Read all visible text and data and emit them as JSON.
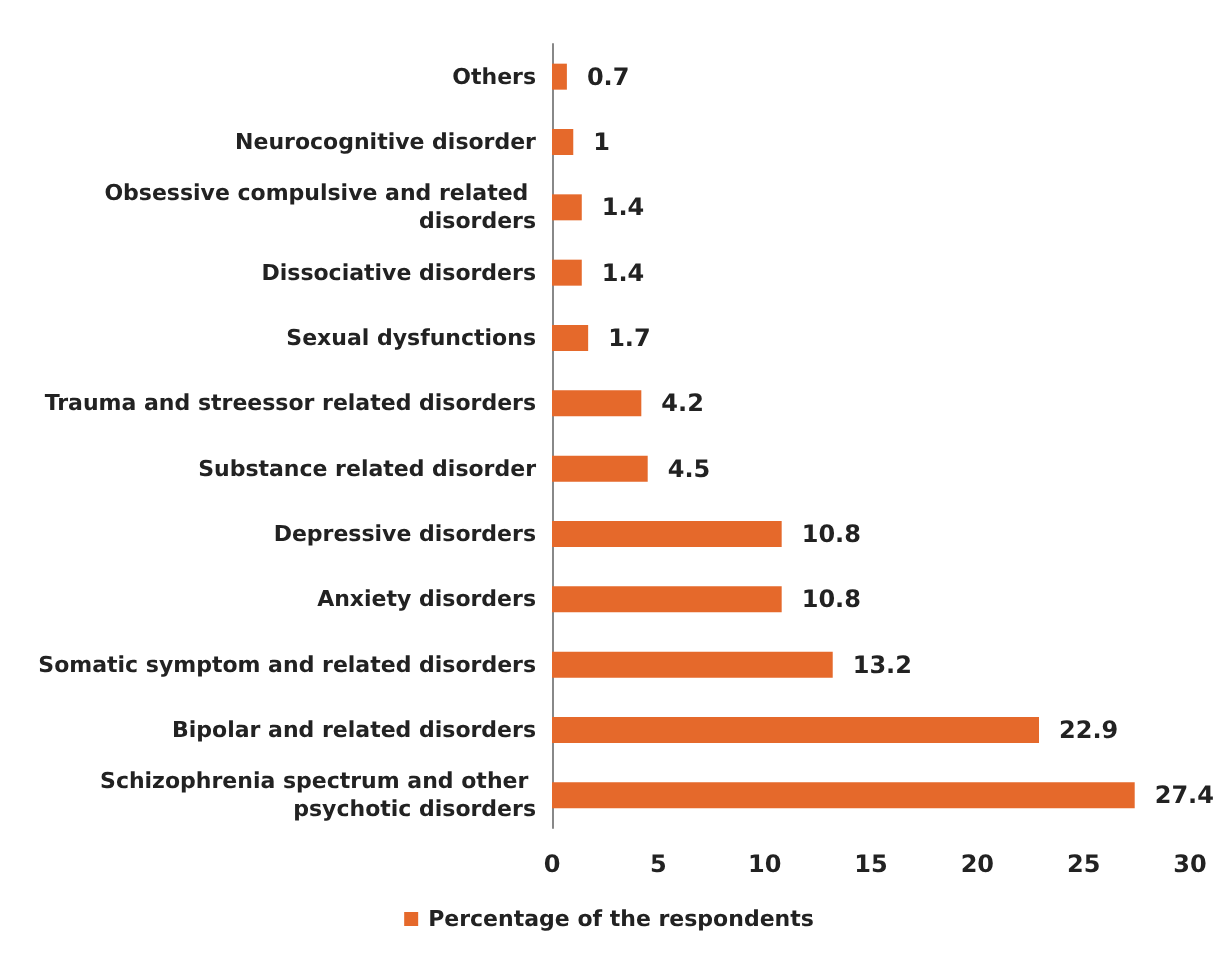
{
  "chart_data": {
    "type": "bar",
    "orientation": "horizontal",
    "categories": [
      "Others",
      "Neurocognitive disorder",
      "Obsessive compulsive and related disorders",
      "Dissociative disorders",
      "Sexual dysfunctions",
      "Trauma and streessor related disorders",
      "Substance related disorder",
      "Depressive disorders",
      "Anxiety disorders",
      "Somatic symptom and related disorders",
      "Bipolar and related disorders",
      "Schizophrenia spectrum and other psychotic disorders"
    ],
    "series": [
      {
        "name": "Percentage of the respondents",
        "color": "#e5692b",
        "values": [
          0.7,
          1,
          1.4,
          1.4,
          1.7,
          4.2,
          4.5,
          10.8,
          10.8,
          13.2,
          22.9,
          27.4
        ]
      }
    ],
    "xlim": [
      0,
      30
    ],
    "xticks": [
      0,
      5,
      10,
      15,
      20,
      25,
      30
    ],
    "data_labels": true,
    "legend": "bottom",
    "grid": false
  }
}
